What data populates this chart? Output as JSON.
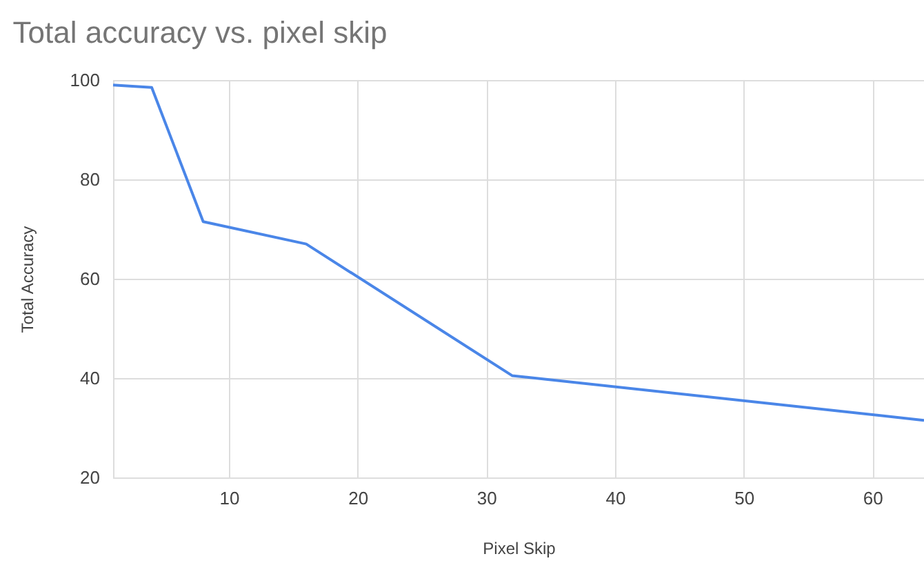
{
  "chart_data": {
    "type": "line",
    "title": "Total accuracy vs. pixel skip",
    "xlabel": "Pixel Skip",
    "ylabel": "Total Accuracy",
    "x": [
      1,
      4,
      8,
      16,
      32,
      64
    ],
    "series": [
      {
        "color": "#4a86e8",
        "values": [
          99,
          98.5,
          71.5,
          67,
          40.5,
          31.5
        ]
      }
    ],
    "xlim": [
      1,
      64
    ],
    "ylim": [
      20,
      100
    ],
    "xticks": [
      10,
      20,
      30,
      40,
      50,
      60
    ],
    "yticks": [
      20,
      40,
      60,
      80,
      100
    ],
    "grid": true,
    "line_style": "solid"
  }
}
